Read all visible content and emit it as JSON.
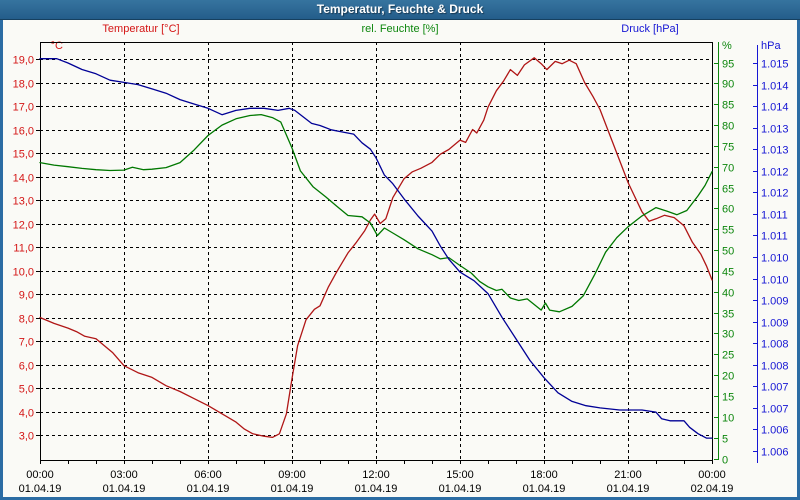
{
  "window": {
    "title": "Temperatur, Feuchte & Druck"
  },
  "chart_data": {
    "type": "line",
    "title": "Temperatur, Feuchte & Druck",
    "grid": "dashed-black, horizontal every 1 °C, vertical every 3 h",
    "legend_position": "top",
    "legend": [
      {
        "label": "Temperatur [°C]",
        "color": "#b01616"
      },
      {
        "label": "rel. Feuchte [%]",
        "color": "#007800"
      },
      {
        "label": "Druck [hPa]",
        "color": "#000096"
      }
    ],
    "x_axis": {
      "span_hours": 24,
      "minor_tick_hours": 1,
      "grid_every_hours": 3,
      "ticks": [
        {
          "time": "00:00",
          "date": "01.04.19"
        },
        {
          "time": "03:00",
          "date": "01.04.19"
        },
        {
          "time": "06:00",
          "date": "01.04.19"
        },
        {
          "time": "09:00",
          "date": "01.04.19"
        },
        {
          "time": "12:00",
          "date": "01.04.19"
        },
        {
          "time": "15:00",
          "date": "01.04.19"
        },
        {
          "time": "18:00",
          "date": "01.04.19"
        },
        {
          "time": "21:00",
          "date": "01.04.19"
        },
        {
          "time": "00:00",
          "date": "02.04.19"
        }
      ]
    },
    "y_axes": {
      "temp": {
        "unit": "°C",
        "label_color": "#d41616",
        "min": 3,
        "max": 19,
        "step": 1,
        "labels": [
          "19,0",
          "18,0",
          "17,0",
          "16,0",
          "15,0",
          "14,0",
          "13,0",
          "12,0",
          "11,0",
          "10,0",
          "9,0",
          "8,0",
          "7,0",
          "6,0",
          "5,0",
          "4,0",
          "3,0"
        ]
      },
      "hum": {
        "unit": "%",
        "label_color": "#0e870e",
        "min": 0,
        "max": 95,
        "step": 5,
        "labels": [
          "95",
          "90",
          "85",
          "80",
          "75",
          "70",
          "65",
          "60",
          "55",
          "50",
          "45",
          "40",
          "35",
          "30",
          "25",
          "20",
          "15",
          "10",
          "5",
          "0"
        ]
      },
      "press": {
        "unit": "hPa",
        "label_color": "#1616d4",
        "min": 1006,
        "max": 1015,
        "step": 0.5,
        "labels": [
          "1.015",
          "1.014",
          "1.014",
          "1.013",
          "1.013",
          "1.012",
          "1.012",
          "1.011",
          "1.011",
          "1.010",
          "1.010",
          "1.009",
          "1.009",
          "1.008",
          "1.008",
          "1.007",
          "1.007",
          "1.006",
          "1.006"
        ]
      }
    },
    "series": [
      {
        "name": "Temperatur",
        "axis": "temp",
        "color": "#b01616",
        "points": [
          [
            0,
            8.0
          ],
          [
            0.5,
            7.75
          ],
          [
            1,
            7.55
          ],
          [
            1.3,
            7.4
          ],
          [
            1.6,
            7.2
          ],
          [
            2,
            7.1
          ],
          [
            2.3,
            6.8
          ],
          [
            2.6,
            6.5
          ],
          [
            3,
            5.95
          ],
          [
            3.5,
            5.65
          ],
          [
            4,
            5.45
          ],
          [
            4.5,
            5.1
          ],
          [
            5,
            4.85
          ],
          [
            5.5,
            4.55
          ],
          [
            6,
            4.25
          ],
          [
            6.5,
            3.9
          ],
          [
            7,
            3.55
          ],
          [
            7.3,
            3.25
          ],
          [
            7.6,
            3.05
          ],
          [
            8,
            2.95
          ],
          [
            8.3,
            2.9
          ],
          [
            8.55,
            3.05
          ],
          [
            8.8,
            3.9
          ],
          [
            9,
            5.4
          ],
          [
            9.2,
            6.8
          ],
          [
            9.5,
            7.9
          ],
          [
            9.8,
            8.35
          ],
          [
            10,
            8.5
          ],
          [
            10.3,
            9.3
          ],
          [
            10.6,
            9.95
          ],
          [
            11,
            10.75
          ],
          [
            11.3,
            11.2
          ],
          [
            11.6,
            11.7
          ],
          [
            11.8,
            12.15
          ],
          [
            11.95,
            12.4
          ],
          [
            12.15,
            12.0
          ],
          [
            12.35,
            12.2
          ],
          [
            12.6,
            13.1
          ],
          [
            13,
            13.9
          ],
          [
            13.3,
            14.2
          ],
          [
            13.6,
            14.35
          ],
          [
            14,
            14.6
          ],
          [
            14.3,
            14.95
          ],
          [
            14.6,
            15.15
          ],
          [
            15,
            15.55
          ],
          [
            15.2,
            15.45
          ],
          [
            15.45,
            16.0
          ],
          [
            15.6,
            15.85
          ],
          [
            15.85,
            16.4
          ],
          [
            16,
            16.95
          ],
          [
            16.3,
            17.65
          ],
          [
            16.55,
            18.05
          ],
          [
            16.8,
            18.55
          ],
          [
            17.05,
            18.3
          ],
          [
            17.3,
            18.75
          ],
          [
            17.65,
            19.05
          ],
          [
            17.9,
            18.8
          ],
          [
            18.1,
            18.55
          ],
          [
            18.4,
            18.9
          ],
          [
            18.65,
            18.8
          ],
          [
            18.9,
            18.95
          ],
          [
            19.15,
            18.8
          ],
          [
            19.45,
            18.0
          ],
          [
            19.75,
            17.4
          ],
          [
            20,
            16.85
          ],
          [
            20.5,
            15.3
          ],
          [
            21,
            13.75
          ],
          [
            21.5,
            12.5
          ],
          [
            21.75,
            12.1
          ],
          [
            22,
            12.2
          ],
          [
            22.3,
            12.35
          ],
          [
            22.65,
            12.25
          ],
          [
            23,
            11.9
          ],
          [
            23.3,
            11.2
          ],
          [
            23.6,
            10.7
          ],
          [
            23.8,
            10.2
          ],
          [
            24,
            9.6
          ]
        ]
      },
      {
        "name": "rel. Feuchte",
        "axis": "hum",
        "color": "#007800",
        "points": [
          [
            0,
            71
          ],
          [
            0.5,
            70.4
          ],
          [
            1,
            70.0
          ],
          [
            1.5,
            69.6
          ],
          [
            2,
            69.3
          ],
          [
            2.5,
            69.1
          ],
          [
            3,
            69.2
          ],
          [
            3.3,
            69.9
          ],
          [
            3.7,
            69.3
          ],
          [
            4,
            69.4
          ],
          [
            4.5,
            69.8
          ],
          [
            5,
            71
          ],
          [
            5.5,
            74
          ],
          [
            6,
            77.5
          ],
          [
            6.5,
            80
          ],
          [
            7,
            81.5
          ],
          [
            7.5,
            82.3
          ],
          [
            7.9,
            82.5
          ],
          [
            8.3,
            81.8
          ],
          [
            8.6,
            80.7
          ],
          [
            9,
            74.5
          ],
          [
            9.3,
            69
          ],
          [
            9.75,
            65.2
          ],
          [
            10.2,
            62.8
          ],
          [
            10.6,
            60.5
          ],
          [
            11,
            58.3
          ],
          [
            11.5,
            58.0
          ],
          [
            11.8,
            56.5
          ],
          [
            12.05,
            53.5
          ],
          [
            12.3,
            55.3
          ],
          [
            12.6,
            54.1
          ],
          [
            13,
            52.5
          ],
          [
            13.5,
            50.3
          ],
          [
            14,
            48.9
          ],
          [
            14.3,
            47.9
          ],
          [
            14.6,
            48.2
          ],
          [
            15,
            46.3
          ],
          [
            15.4,
            44.5
          ],
          [
            15.7,
            42.5
          ],
          [
            16,
            41.2
          ],
          [
            16.3,
            40.3
          ],
          [
            16.5,
            40.6
          ],
          [
            16.8,
            38.5
          ],
          [
            17.1,
            37.9
          ],
          [
            17.4,
            38.3
          ],
          [
            17.9,
            35.6
          ],
          [
            18.05,
            37.3
          ],
          [
            18.2,
            35.6
          ],
          [
            18.55,
            35.2
          ],
          [
            19,
            36.5
          ],
          [
            19.4,
            39
          ],
          [
            19.8,
            44
          ],
          [
            20.2,
            49.5
          ],
          [
            20.6,
            53
          ],
          [
            21,
            55.6
          ],
          [
            21.5,
            58.2
          ],
          [
            22,
            60.2
          ],
          [
            22.4,
            59.3
          ],
          [
            22.75,
            58.5
          ],
          [
            23.1,
            59.5
          ],
          [
            23.5,
            63
          ],
          [
            23.75,
            65.5
          ],
          [
            24,
            68.8
          ]
        ]
      },
      {
        "name": "Druck",
        "axis": "press",
        "color": "#000096",
        "points": [
          [
            0,
            1015.1
          ],
          [
            0.6,
            1015.1
          ],
          [
            1,
            1015.0
          ],
          [
            1.5,
            1014.85
          ],
          [
            2,
            1014.75
          ],
          [
            2.5,
            1014.6
          ],
          [
            3,
            1014.55
          ],
          [
            3.5,
            1014.5
          ],
          [
            4,
            1014.4
          ],
          [
            4.5,
            1014.3
          ],
          [
            5,
            1014.15
          ],
          [
            5.5,
            1014.05
          ],
          [
            6,
            1013.95
          ],
          [
            6.5,
            1013.8
          ],
          [
            7,
            1013.9
          ],
          [
            7.5,
            1013.95
          ],
          [
            8,
            1013.95
          ],
          [
            8.5,
            1013.9
          ],
          [
            8.9,
            1013.95
          ],
          [
            9.1,
            1013.9
          ],
          [
            9.4,
            1013.75
          ],
          [
            9.7,
            1013.6
          ],
          [
            10,
            1013.55
          ],
          [
            10.4,
            1013.45
          ],
          [
            10.8,
            1013.4
          ],
          [
            11.2,
            1013.35
          ],
          [
            11.5,
            1013.15
          ],
          [
            11.8,
            1013.0
          ],
          [
            12,
            1012.8
          ],
          [
            12.3,
            1012.4
          ],
          [
            12.6,
            1012.2
          ],
          [
            13,
            1011.85
          ],
          [
            13.5,
            1011.45
          ],
          [
            14,
            1011.1
          ],
          [
            14.3,
            1010.75
          ],
          [
            14.6,
            1010.45
          ],
          [
            15,
            1010.15
          ],
          [
            15.5,
            1009.95
          ],
          [
            16,
            1009.65
          ],
          [
            16.5,
            1009.1
          ],
          [
            17,
            1008.6
          ],
          [
            17.5,
            1008.1
          ],
          [
            18,
            1007.7
          ],
          [
            18.5,
            1007.35
          ],
          [
            19,
            1007.15
          ],
          [
            19.5,
            1007.05
          ],
          [
            20,
            1007.0
          ],
          [
            20.7,
            1006.95
          ],
          [
            21.5,
            1006.95
          ],
          [
            22,
            1006.9
          ],
          [
            22.2,
            1006.75
          ],
          [
            22.5,
            1006.7
          ],
          [
            23,
            1006.7
          ],
          [
            23.2,
            1006.55
          ],
          [
            23.5,
            1006.4
          ],
          [
            23.8,
            1006.3
          ],
          [
            24,
            1006.3
          ]
        ]
      }
    ]
  }
}
